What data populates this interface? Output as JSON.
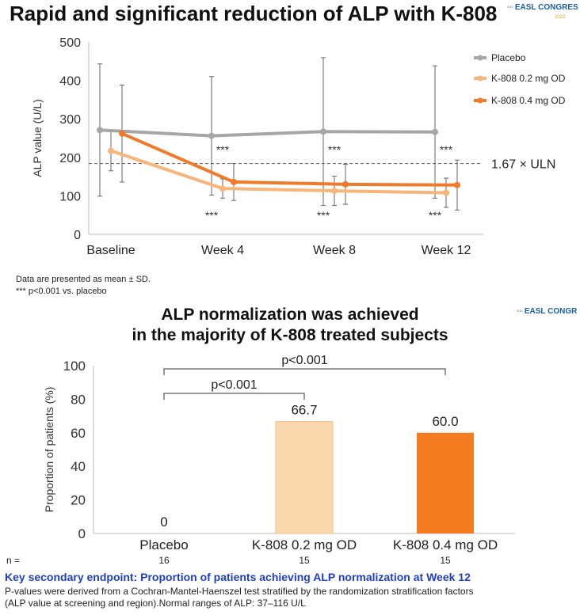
{
  "header": {
    "title": "Rapid and significant reduction of ALP with K-808"
  },
  "logos": {
    "logo1_text": "EASL CONGRES",
    "logo1_sub": "2022",
    "logo2_text": "EASL CONGR"
  },
  "notes": {
    "line1": "Data are presented as mean ± SD.",
    "line2": "*** p<0.001 vs. placebo"
  },
  "section2": {
    "title_line1": "ALP normalization was achieved",
    "title_line2": "in the majority of K-808 treated subjects"
  },
  "footer": {
    "key_endpoint": "Key secondary endpoint: Proportion of patients achieving ALP normalization at Week 12",
    "pvalue_note_line1": "P-values were derived from a Cochran-Mantel-Haenszel test stratified by the randomization stratification factors",
    "pvalue_note_line2": "(ALP value at screening and region).Normal ranges of ALP: 37–116 U/L"
  },
  "colors": {
    "placebo": "#a6a6a6",
    "low_dose": "#f8b57a",
    "high_dose": "#f07a2a",
    "bar_low": "#fad7ad",
    "bar_high": "#f47b20"
  },
  "chart_data": [
    {
      "type": "line",
      "title": "",
      "ylabel": "ALP value (U/L)",
      "xlabel": "",
      "categories": [
        "Baseline",
        "Week 4",
        "Week 8",
        "Week 12"
      ],
      "ylim": [
        0,
        500
      ],
      "yticks": [
        0,
        100,
        200,
        300,
        400,
        500
      ],
      "legend_position": "top-right",
      "series": [
        {
          "name": "Placebo",
          "color": "#a6a6a6",
          "values": [
            271,
            256,
            267,
            266
          ],
          "sd": [
            172,
            154,
            192,
            172
          ]
        },
        {
          "name": "K-808 0.2 mg OD",
          "color": "#f8b57a",
          "values": [
            217,
            119,
            113,
            108
          ],
          "sd": [
            52,
            25,
            38,
            38
          ]
        },
        {
          "name": "K-808 0.4 mg OD",
          "color": "#f07a2a",
          "values": [
            262,
            136,
            130,
            128
          ],
          "sd": [
            126,
            48,
            52,
            65
          ]
        }
      ],
      "reference_line": {
        "value": 184,
        "label": "1.67 × ULN"
      },
      "significance_above": [
        "",
        "***",
        "***",
        "***"
      ],
      "significance_below": [
        "",
        "***",
        "***",
        "***"
      ]
    },
    {
      "type": "bar",
      "title": "",
      "ylabel": "Proportion of patients (%)",
      "xlabel": "",
      "categories": [
        "Placebo",
        "K-808 0.2 mg OD",
        "K-808 0.4 mg OD"
      ],
      "values": [
        0,
        66.7,
        60.0
      ],
      "value_labels": [
        "0",
        "66.7",
        "60.0"
      ],
      "colors": [
        "#ffffff",
        "#fad7ad",
        "#f47b20"
      ],
      "ylim": [
        0,
        100
      ],
      "yticks": [
        0,
        20,
        40,
        60,
        80,
        100
      ],
      "n_label": "n =",
      "n_values": [
        "16",
        "15",
        "15"
      ],
      "comparisons": [
        {
          "from": 0,
          "to": 1,
          "label": "p<0.001"
        },
        {
          "from": 0,
          "to": 2,
          "label": "p<0.001"
        }
      ]
    }
  ]
}
